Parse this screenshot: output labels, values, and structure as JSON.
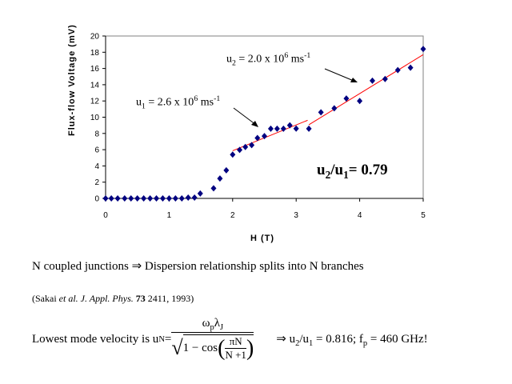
{
  "chart_data": {
    "type": "scatter",
    "xlabel": "H (T)",
    "ylabel": "Flux-flow Voltage (mV)",
    "xlim": [
      0,
      5
    ],
    "ylim": [
      0,
      20
    ],
    "xticks": [
      "0",
      "1",
      "2",
      "3",
      "4",
      "5"
    ],
    "yticks": [
      "0",
      "2",
      "4",
      "6",
      "8",
      "10",
      "12",
      "14",
      "16",
      "18",
      "20"
    ],
    "series": [
      {
        "name": "data",
        "color": "#000080",
        "x": [
          0,
          0.09,
          0.19,
          0.3,
          0.4,
          0.5,
          0.6,
          0.7,
          0.8,
          0.9,
          1.0,
          1.1,
          1.2,
          1.3,
          1.4,
          1.49,
          1.7,
          1.8,
          1.9,
          2.0,
          2.11,
          2.2,
          2.3,
          2.39,
          2.5,
          2.6,
          2.7,
          2.8,
          2.9,
          3.0,
          3.2,
          3.39,
          3.6,
          3.79,
          4.0,
          4.2,
          4.4,
          4.6,
          4.8,
          5.0
        ],
        "y": [
          0,
          0,
          0,
          0,
          0,
          0,
          0,
          0,
          0,
          0,
          0,
          0,
          0,
          0.1,
          0.1,
          0.6,
          1.24,
          2.45,
          3.46,
          5.4,
          5.97,
          6.33,
          6.56,
          7.44,
          7.67,
          8.58,
          8.58,
          8.58,
          9.0,
          8.6,
          8.58,
          10.6,
          11.1,
          12.3,
          12.0,
          14.5,
          14.7,
          15.8,
          16.1,
          18.4
        ]
      }
    ],
    "fit_lines": [
      {
        "name": "u1 fit",
        "color": "#ff0000",
        "x": [
          2.0,
          3.18
        ],
        "y": [
          5.87,
          9.62
        ]
      },
      {
        "name": "u2 fit",
        "color": "#ff0000",
        "x": [
          3.2,
          5.0
        ],
        "y": [
          9.07,
          17.7
        ]
      }
    ],
    "annotations": {
      "u1": {
        "base": "u",
        "sub": "1",
        "text": " = 2.6 x 10",
        "exp": "6",
        "unit": " ms",
        "unit_exp": "-1"
      },
      "u2": {
        "base": "u",
        "sub": "2",
        "text": " = 2.0 x 10",
        "exp": "6",
        "unit": " ms",
        "unit_exp": "-1"
      },
      "ratio": {
        "a": "u",
        "a_sub": "2",
        "slash": "/u",
        "b_sub": "1",
        "value": "= 0.79"
      }
    }
  },
  "text": {
    "line1": "N coupled junctions ⇒ Dispersion relationship splits into N branches",
    "ref_pre": "(Sakai ",
    "ref_etal": "et al. J. Appl. Phys.",
    "ref_vol": " 73",
    "ref_post": " 2411, 1993)",
    "formula_intro": "Lowest mode velocity is  u",
    "formula_sub": "N",
    "formula_eq": " = ",
    "numerator": "ω",
    "num_sub1": "p",
    "num_lambda": "λ",
    "num_sub2": "J",
    "denominator": "1 − cos",
    "inner_num": "πN",
    "inner_den": "N +1",
    "result": "⇒ u",
    "res_sub1": "2",
    "res_mid": "/u",
    "res_sub2": "1",
    "res_val": "= 0.816;  f",
    "res_sub3": "p",
    "res_end": "=  460 GHz!"
  }
}
